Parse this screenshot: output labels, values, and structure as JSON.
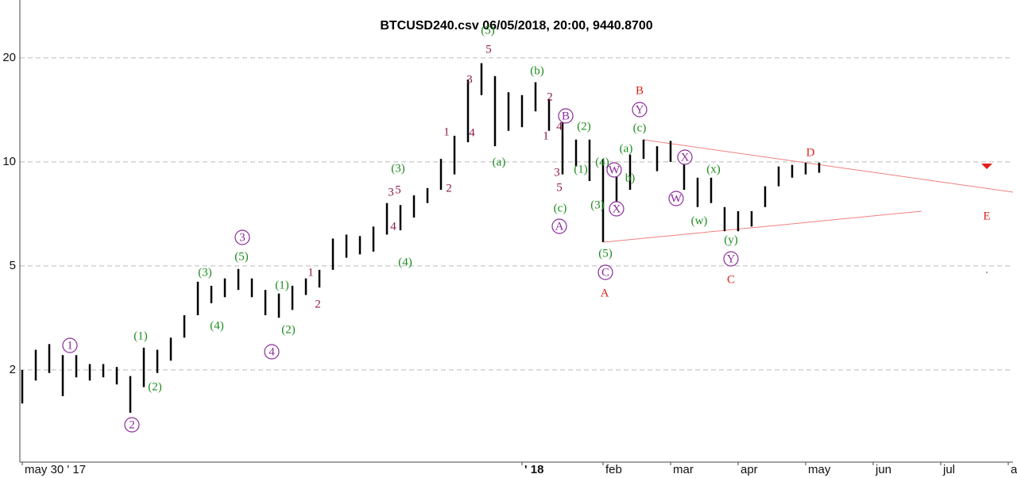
{
  "chart_data": {
    "type": "ohlc",
    "title": "BTCUSD240.csv  06/05/2018, 20:00, 9440.8700",
    "log_y": true,
    "grid": true,
    "bar_color": "#000000",
    "grid_color": "#bbbbbb",
    "trendline_color": "#f08080",
    "ylim": [
      1.353,
      29.4
    ],
    "yticks": [
      {
        "value": 2.5,
        "label": "2"
      },
      5,
      10,
      20
    ],
    "categories": [
      "may 30 ' 17",
      null,
      null,
      null,
      null,
      null,
      null,
      null,
      null,
      null,
      null,
      null,
      null,
      null,
      null,
      null,
      null,
      null,
      null,
      null,
      null,
      null,
      null,
      null,
      null,
      null,
      null,
      null,
      null,
      null,
      null,
      null,
      null,
      null,
      null,
      null,
      null,
      "' 18",
      null,
      null,
      null,
      null,
      null,
      "feb",
      null,
      null,
      null,
      null,
      "mar",
      null,
      null,
      null,
      null,
      "apr",
      null,
      null,
      null,
      null,
      "may",
      null,
      null,
      null,
      null,
      "jun",
      null,
      null,
      null,
      null,
      "jul",
      null,
      null,
      null,
      null,
      "a"
    ],
    "high": [
      2.5,
      2.86,
      2.97,
      2.76,
      2.76,
      2.6,
      2.6,
      2.55,
      2.4,
      2.9,
      2.86,
      3.1,
      3.6,
      4.5,
      4.38,
      4.6,
      4.9,
      4.6,
      4.26,
      4.16,
      4.38,
      4.6,
      4.87,
      6.0,
      6.16,
      6.1,
      6.5,
      7.6,
      7.5,
      8.0,
      8.4,
      10.2,
      11.9,
      17.3,
      19.3,
      17.7,
      15.9,
      15.6,
      17.0,
      15.2,
      13.3,
      11.6,
      11.6,
      10.2,
      9.2,
      10.5,
      11.6,
      11.1,
      11.5,
      10.8,
      9.0,
      9.0,
      7.4,
      7.2,
      7.2,
      8.5,
      9.7,
      9.8,
      9.95,
      9.95,
      null,
      null,
      null,
      null,
      null,
      null,
      null,
      null,
      null,
      null,
      null,
      null,
      null,
      null
    ],
    "low": [
      2.0,
      2.33,
      2.45,
      2.1,
      2.38,
      2.33,
      2.38,
      2.27,
      1.88,
      2.23,
      2.45,
      2.66,
      3.1,
      3.6,
      3.9,
      4.06,
      4.26,
      4.06,
      3.6,
      3.54,
      3.73,
      4.12,
      4.33,
      4.87,
      5.28,
      5.4,
      5.5,
      6.16,
      6.34,
      6.9,
      7.6,
      8.3,
      9.2,
      11.4,
      15.6,
      11.1,
      12.3,
      12.6,
      14.0,
      12.3,
      9.2,
      9.7,
      8.8,
      5.86,
      7.2,
      8.3,
      10.2,
      9.4,
      10.0,
      8.3,
      7.4,
      7.6,
      6.3,
      6.3,
      6.5,
      7.4,
      8.5,
      9.0,
      9.2,
      9.3,
      null,
      null,
      null,
      null,
      null,
      null,
      null,
      null,
      null,
      null,
      null,
      null,
      null,
      null
    ],
    "wave_labels": {
      "green": {
        "color": "#1e8c1e",
        "texts": [
          "(1)",
          "(2)",
          "(3)",
          "(4)",
          "(5)",
          "(1)",
          "(2)",
          "(3)",
          "(4)",
          "(a)",
          "(b)",
          "(c)",
          "(2)",
          "(1)",
          "(4)",
          "(3)",
          "(5)",
          "(c)",
          "(a)",
          "b)",
          "(w)",
          "(x)",
          "(y)",
          "(5)"
        ]
      },
      "maroon": {
        "color": "#8b1a4a",
        "texts": [
          "5",
          "3",
          "1",
          "4",
          "2",
          "3",
          "5",
          "4",
          "1",
          "2",
          "2",
          "4",
          "1",
          "3",
          "5"
        ]
      },
      "circled": {
        "color": "#8b2a9a",
        "texts": [
          "1",
          "2",
          "3",
          "4",
          "A",
          "B",
          "C",
          "W",
          "X",
          "Y",
          "X",
          "W",
          "Y"
        ]
      },
      "red": {
        "color": "#e0201a",
        "texts": [
          "B",
          "A",
          "D",
          "C",
          "E"
        ]
      }
    }
  }
}
